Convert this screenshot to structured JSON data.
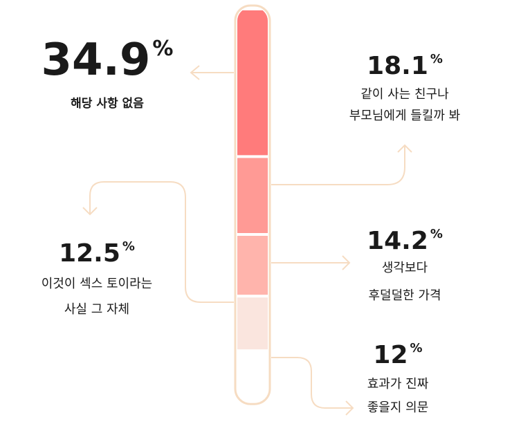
{
  "chart_data": {
    "type": "stacked-tube",
    "categories": [
      [
        "해당 사항 없음"
      ],
      [
        "같이 사는 친구나",
        "부모님에게 들킬까 봐"
      ],
      [
        "생각보다",
        "후덜덜한 가격"
      ],
      [
        "이것이 섹스 토이라는",
        "사실 그 자체"
      ],
      [
        "효과가 진짜",
        "좋을지 의문"
      ]
    ],
    "values": [
      34.9,
      18.1,
      14.2,
      12.5,
      12
    ],
    "unit": "%",
    "colors": [
      "#ff7b7b",
      "#ff9a95",
      "#ffb4ac",
      "#fae5de",
      "#ffffff"
    ],
    "border_color": "#f6dcc2"
  }
}
